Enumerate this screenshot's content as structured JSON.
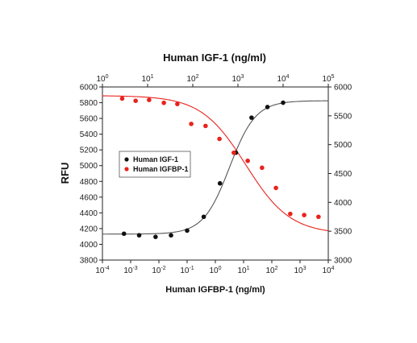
{
  "chart_data": {
    "type": "scatter",
    "title": "Human IGF-1 (ng/ml)",
    "xlabel": "Human IGFBP-1 (ng/ml)",
    "ylabel": "RFU",
    "x_bottom_scale": "log",
    "x_bottom_range": [
      0.0001,
      10000
    ],
    "x_bottom_ticks": [
      {
        "base": "10",
        "exp": "-4"
      },
      {
        "base": "10",
        "exp": "-3"
      },
      {
        "base": "10",
        "exp": "-2"
      },
      {
        "base": "10",
        "exp": "-1"
      },
      {
        "base": "10",
        "exp": "0"
      },
      {
        "base": "10",
        "exp": "1"
      },
      {
        "base": "10",
        "exp": "2"
      },
      {
        "base": "10",
        "exp": "3"
      },
      {
        "base": "10",
        "exp": "4"
      }
    ],
    "x_top_scale": "log",
    "x_top_range": [
      1,
      100000
    ],
    "x_top_ticks": [
      {
        "base": "10",
        "exp": "0"
      },
      {
        "base": "10",
        "exp": "1"
      },
      {
        "base": "10",
        "exp": "2"
      },
      {
        "base": "10",
        "exp": "3"
      },
      {
        "base": "10",
        "exp": "4"
      },
      {
        "base": "10",
        "exp": "5"
      }
    ],
    "y_left_range": [
      3800,
      6000
    ],
    "y_left_ticks": [
      "3800",
      "4000",
      "4200",
      "4400",
      "4600",
      "4800",
      "5000",
      "5200",
      "5400",
      "5600",
      "5800",
      "6000"
    ],
    "y_right_range": [
      3000,
      6000
    ],
    "y_right_ticks": [
      "3000",
      "3500",
      "4000",
      "4500",
      "5000",
      "5500",
      "6000"
    ],
    "grid": false,
    "legend_position": "center-left",
    "series": [
      {
        "name": "Human IGF-1",
        "color": "#111111",
        "x_axis": "top",
        "y_axis": "left",
        "points": [
          {
            "x": 3,
            "y": 4135
          },
          {
            "x": 6.5,
            "y": 4115
          },
          {
            "x": 15,
            "y": 4095
          },
          {
            "x": 33,
            "y": 4115
          },
          {
            "x": 75,
            "y": 4175
          },
          {
            "x": 175,
            "y": 4350
          },
          {
            "x": 400,
            "y": 4775
          },
          {
            "x": 900,
            "y": 5165
          },
          {
            "x": 2000,
            "y": 5610
          },
          {
            "x": 4500,
            "y": 5745
          },
          {
            "x": 10000,
            "y": 5800
          }
        ],
        "fit": {
          "bottom": 4130,
          "top": 5825,
          "ec50": 650,
          "hill": 1.5
        }
      },
      {
        "name": "Human IGFBP-1",
        "color": "#e8231d",
        "x_axis": "bottom",
        "y_axis": "right",
        "points": [
          {
            "x": 0.0005,
            "y": 5800
          },
          {
            "x": 0.0015,
            "y": 5760
          },
          {
            "x": 0.0045,
            "y": 5775
          },
          {
            "x": 0.015,
            "y": 5725
          },
          {
            "x": 0.045,
            "y": 5705
          },
          {
            "x": 0.14,
            "y": 5360
          },
          {
            "x": 0.45,
            "y": 5325
          },
          {
            "x": 1.4,
            "y": 5100
          },
          {
            "x": 4.5,
            "y": 4860
          },
          {
            "x": 14,
            "y": 4720
          },
          {
            "x": 45,
            "y": 4600
          },
          {
            "x": 140,
            "y": 4250
          },
          {
            "x": 450,
            "y": 3800
          },
          {
            "x": 1400,
            "y": 3780
          },
          {
            "x": 4500,
            "y": 3750
          }
        ],
        "fit": {
          "bottom": 3450,
          "top": 5850,
          "ec50": 12,
          "hill": -0.55
        }
      }
    ]
  }
}
